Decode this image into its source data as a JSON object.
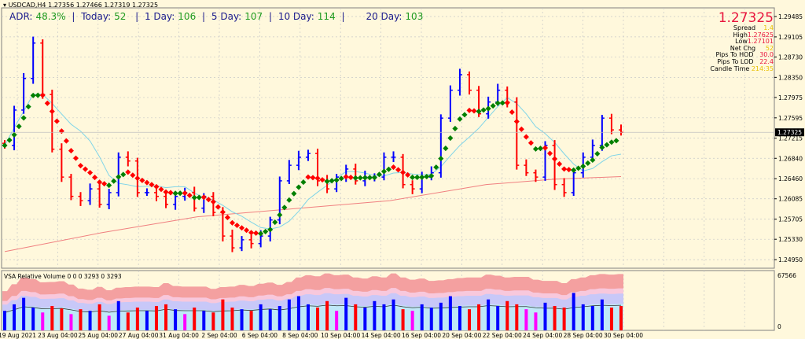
{
  "header": {
    "symbol": "USDCAD,H4",
    "ohlc": "1.27356 1.27466 1.27319 1.27325"
  },
  "adr": {
    "label": "ADR:",
    "pct": "48.3%",
    "sep": "|",
    "today_label": "Today:",
    "today": "52",
    "d1_label": "1 Day:",
    "d1": "106",
    "d5_label": "5 Day:",
    "d5": "107",
    "d10_label": "10 Day:",
    "d10": "114",
    "d20_label": "20 Day:",
    "d20": "103"
  },
  "info": {
    "price": "1.27325",
    "spread_label": "Spread",
    "spread": "1.4",
    "high_label": "High",
    "high": "1.27625",
    "low_label": "Low",
    "low": "1.27101",
    "netchg_label": "Net Chg",
    "netchg": "52",
    "hod_label": "Pips To HOD",
    "hod": "30.0",
    "lod_label": "Pips To LOD",
    "lod": "22.4",
    "candle_label": "Candle Time",
    "candle": "214:35"
  },
  "volume_panel": {
    "title": "VSA Relative Volume 0 0 0 3293 0 3293",
    "max_label": "67566",
    "min_label": "0"
  },
  "colors": {
    "background": "#fff8dc",
    "up": "#0000ff",
    "down": "#ff0000",
    "signal_up": "#008000",
    "signal_down": "#ff0000",
    "ma_fast": "#7fd4e8",
    "ma_slow": "#f08080",
    "current_price_bg": "#000000"
  },
  "chart_data": {
    "type": "bar",
    "symbol": "USDCAD",
    "timeframe": "H4",
    "ylim": [
      1.248,
      1.297
    ],
    "y_ticks": [
      "1.29485",
      "1.29105",
      "1.28730",
      "1.28350",
      "1.27975",
      "1.27595",
      "1.27215",
      "1.26840",
      "1.26460",
      "1.26085",
      "1.25705",
      "1.25330",
      "1.24950"
    ],
    "current_price": "1.27325",
    "x_ticks": [
      "19 Aug 2021",
      "23 Aug 04:00",
      "25 Aug 04:00",
      "27 Aug 04:00",
      "31 Aug 04:00",
      "2 Sep 04:00",
      "6 Sep 04:00",
      "8 Sep 04:00",
      "10 Sep 04:00",
      "14 Sep 04:00",
      "16 Sep 04:00",
      "20 Sep 04:00",
      "22 Sep 04:00",
      "24 Sep 04:00",
      "28 Sep 04:00",
      "30 Sep 04:00"
    ],
    "grid": true,
    "close": [
      1.2708,
      1.2774,
      1.2833,
      1.2899,
      1.2803,
      1.2701,
      1.2649,
      1.2613,
      1.2605,
      1.2627,
      1.2598,
      1.262,
      1.2686,
      1.2679,
      1.262,
      1.262,
      1.2613,
      1.2598,
      1.2613,
      1.262,
      1.2591,
      1.2613,
      1.2583,
      1.2539,
      1.2517,
      1.2532,
      1.2525,
      1.2539,
      1.2569,
      1.2642,
      1.2671,
      1.2686,
      1.2693,
      1.2642,
      1.2627,
      1.2649,
      1.2664,
      1.2642,
      1.2649,
      1.2649,
      1.2686,
      1.2686,
      1.2635,
      1.2627,
      1.2649,
      1.2657,
      1.2759,
      1.2811,
      1.284,
      1.2811,
      1.2767,
      1.2789,
      1.2811,
      1.2789,
      1.2671,
      1.2657,
      1.2649,
      1.2708,
      1.2635,
      1.262,
      1.2657,
      1.2686,
      1.2708,
      1.2759,
      1.2737,
      1.27325
    ],
    "ma_slow": [
      [
        0,
        1.251
      ],
      [
        20,
        1.2545
      ],
      [
        40,
        1.2575
      ],
      [
        60,
        1.259
      ],
      [
        80,
        1.2605
      ],
      [
        100,
        1.2635
      ],
      [
        114,
        1.2645
      ],
      [
        128,
        1.265
      ]
    ],
    "volume": [
      22000,
      30000,
      38000,
      26000,
      20000,
      28000,
      25000,
      18000,
      24000,
      22000,
      30000,
      16000,
      34000,
      20000,
      26000,
      22000,
      28000,
      30000,
      24000,
      18000,
      26000,
      22000,
      20000,
      36000,
      26000,
      24000,
      22000,
      30000,
      24000,
      28000,
      36000,
      40000,
      30000,
      26000,
      34000,
      22000,
      38000,
      30000,
      26000,
      34000,
      30000,
      36000,
      24000,
      22000,
      30000,
      26000,
      32000,
      40000,
      28000,
      24000,
      30000,
      36000,
      28000,
      34000,
      30000,
      24000,
      20000,
      32000,
      28000,
      26000,
      44000,
      30000,
      28000,
      36000,
      26000,
      28000
    ],
    "volume_ylim": [
      0,
      67566
    ]
  }
}
